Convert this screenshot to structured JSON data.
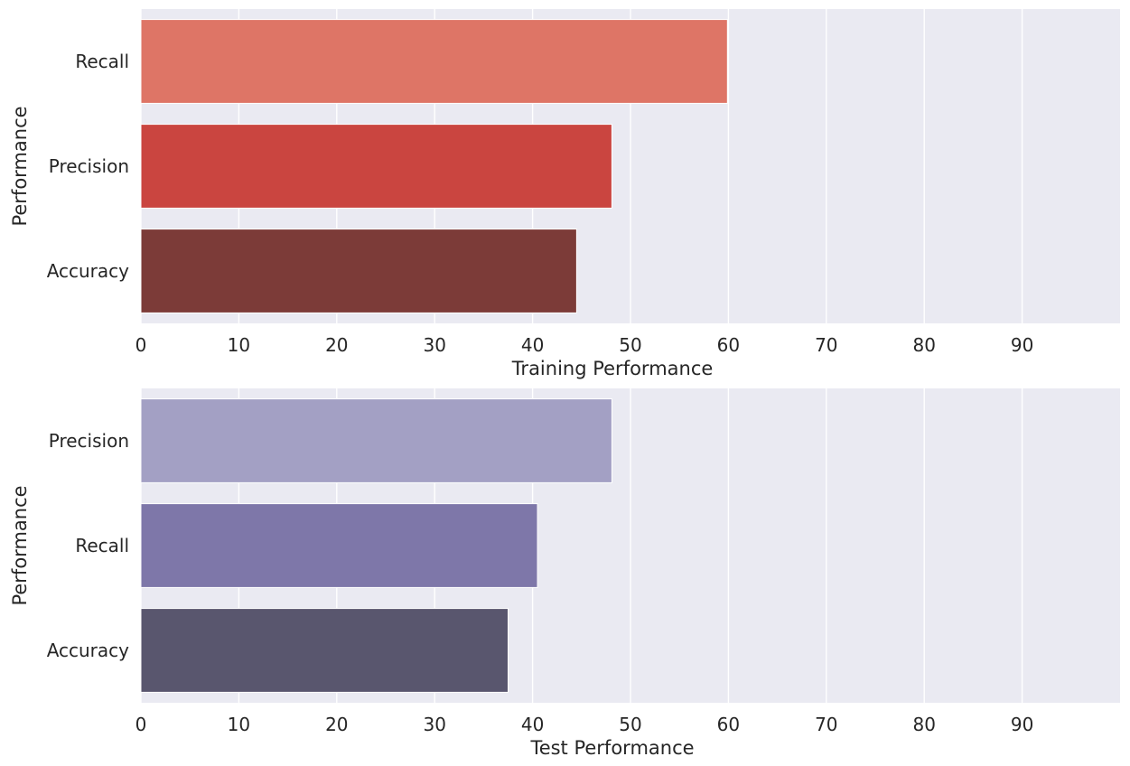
{
  "chart_data": [
    {
      "type": "bar",
      "orientation": "horizontal",
      "categories": [
        "Recall",
        "Precision",
        "Accuracy"
      ],
      "values": [
        59.9,
        48.1,
        44.5
      ],
      "colors": [
        "#de7566",
        "#ca4540",
        "#7c3b38"
      ],
      "xlabel": "Training Performance",
      "ylabel": "Performance",
      "xlim": [
        0,
        100
      ],
      "xticks": [
        0,
        10,
        20,
        30,
        40,
        50,
        60,
        70,
        80,
        90
      ],
      "grid": true,
      "background": "#eaeaf2"
    },
    {
      "type": "bar",
      "orientation": "horizontal",
      "categories": [
        "Precision",
        "Recall",
        "Accuracy"
      ],
      "values": [
        48.1,
        40.5,
        37.5
      ],
      "colors": [
        "#a3a0c4",
        "#7e77a9",
        "#59566e"
      ],
      "xlabel": "Test Performance",
      "ylabel": "Performance",
      "xlim": [
        0,
        100
      ],
      "xticks": [
        0,
        10,
        20,
        30,
        40,
        50,
        60,
        70,
        80,
        90
      ],
      "grid": true,
      "background": "#eaeaf2"
    }
  ]
}
